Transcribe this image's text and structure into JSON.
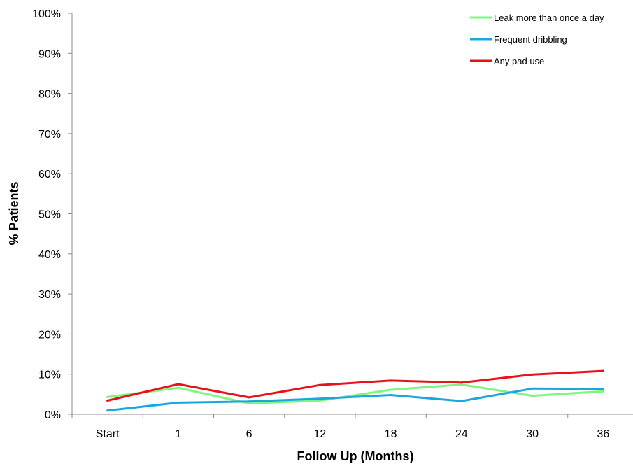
{
  "chart_data": {
    "type": "line",
    "title": "",
    "xlabel": "Follow Up (Months)",
    "ylabel": "% Patients",
    "categories": [
      "Start",
      "1",
      "6",
      "12",
      "18",
      "24",
      "30",
      "36"
    ],
    "ylim": [
      0,
      100
    ],
    "yticks": [
      "0%",
      "10%",
      "20%",
      "30%",
      "40%",
      "50%",
      "60%",
      "70%",
      "80%",
      "90%",
      "100%"
    ],
    "grid": false,
    "legend_position": "top-right",
    "series": [
      {
        "name": "Leak more than once a day",
        "color": "#7CF77C",
        "values": [
          4.3,
          6.6,
          2.7,
          3.4,
          6.1,
          7.4,
          4.6,
          5.7
        ]
      },
      {
        "name": "Frequent dribbling",
        "color": "#1AA7E0",
        "values": [
          0.9,
          2.9,
          3.2,
          3.9,
          4.8,
          3.3,
          6.4,
          6.3
        ]
      },
      {
        "name": "Any pad use",
        "color": "#E8131A",
        "values": [
          3.4,
          7.5,
          4.2,
          7.3,
          8.4,
          7.9,
          9.9,
          10.8
        ]
      }
    ]
  }
}
